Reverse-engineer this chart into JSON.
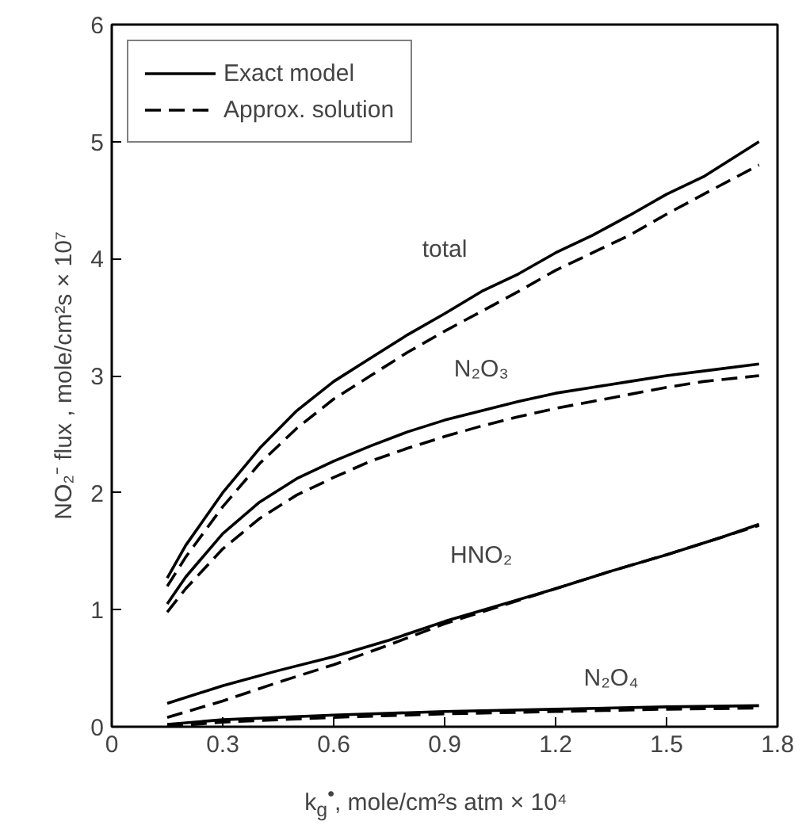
{
  "chart_data": {
    "type": "line",
    "xlabel": "k$_{g}$$^{•}$, mole/cm²s atm × 10⁴",
    "ylabel": "NO₂⁻ flux , mole/cm²s × 10⁷",
    "xlim": [
      0,
      1.8
    ],
    "ylim": [
      0,
      6
    ],
    "xticks": [
      0,
      {
        "value": 0.3,
        "label": "0.3"
      },
      {
        "value": 0.6,
        "label": "0.6"
      },
      {
        "value": 0.9,
        "label": "0.9"
      },
      {
        "value": 1.2,
        "label": "1.2"
      },
      {
        "value": 1.5,
        "label": "1.5"
      },
      {
        "value": 1.8,
        "label": "1.8"
      }
    ],
    "yticks": [
      0,
      1,
      2,
      3,
      4,
      5,
      6
    ],
    "grid": false,
    "legend": "top left",
    "series": [
      {
        "name": "Exact model",
        "color": "#000000",
        "line_style": "solid",
        "x": [
          0.15,
          0.2,
          0.3,
          0.4,
          0.5,
          0.6,
          0.7,
          0.8,
          0.9,
          1.0,
          1.1,
          1.2,
          1.3,
          1.4,
          1.5,
          1.6,
          1.75
        ],
        "values": [
          1.27,
          1.55,
          2.0,
          2.38,
          2.7,
          2.95,
          3.15,
          3.35,
          3.53,
          3.72,
          3.87,
          4.05,
          4.2,
          4.37,
          4.55,
          4.7,
          5.0
        ]
      },
      {
        "name": "Approx. solution",
        "color": "#000000",
        "line_style": "dashed",
        "x": [
          0.15,
          0.2,
          0.3,
          0.4,
          0.5,
          0.6,
          0.7,
          0.8,
          0.9,
          1.0,
          1.1,
          1.2,
          1.3,
          1.4,
          1.5,
          1.6,
          1.75
        ],
        "values": [
          1.2,
          1.45,
          1.88,
          2.25,
          2.55,
          2.8,
          3.0,
          3.2,
          3.38,
          3.55,
          3.72,
          3.9,
          4.05,
          4.2,
          4.38,
          4.55,
          4.8
        ]
      },
      {
        "color": "#000000",
        "line_style": "solid",
        "x": [
          0.15,
          0.2,
          0.3,
          0.4,
          0.5,
          0.6,
          0.7,
          0.8,
          0.9,
          1.0,
          1.1,
          1.2,
          1.3,
          1.4,
          1.5,
          1.6,
          1.75
        ],
        "values": [
          1.05,
          1.28,
          1.65,
          1.92,
          2.12,
          2.27,
          2.4,
          2.52,
          2.62,
          2.7,
          2.78,
          2.85,
          2.9,
          2.95,
          3.0,
          3.04,
          3.1
        ]
      },
      {
        "color": "#000000",
        "line_style": "dashed",
        "x": [
          0.15,
          0.2,
          0.3,
          0.4,
          0.5,
          0.6,
          0.7,
          0.8,
          0.9,
          1.0,
          1.1,
          1.2,
          1.3,
          1.4,
          1.5,
          1.6,
          1.75
        ],
        "values": [
          0.98,
          1.18,
          1.52,
          1.78,
          1.98,
          2.13,
          2.27,
          2.38,
          2.48,
          2.57,
          2.65,
          2.72,
          2.78,
          2.84,
          2.9,
          2.95,
          3.0
        ]
      },
      {
        "color": "#000000",
        "line_style": "solid",
        "x": [
          0.15,
          0.3,
          0.45,
          0.6,
          0.75,
          0.9,
          1.05,
          1.2,
          1.35,
          1.5,
          1.65,
          1.75
        ],
        "values": [
          0.2,
          0.35,
          0.48,
          0.6,
          0.74,
          0.9,
          1.04,
          1.18,
          1.33,
          1.47,
          1.62,
          1.73
        ]
      },
      {
        "color": "#000000",
        "line_style": "dashed",
        "x": [
          0.15,
          0.3,
          0.45,
          0.6,
          0.75,
          0.9,
          1.05,
          1.2,
          1.35,
          1.5,
          1.65,
          1.75
        ],
        "values": [
          0.08,
          0.22,
          0.38,
          0.53,
          0.7,
          0.88,
          1.03,
          1.18,
          1.33,
          1.47,
          1.62,
          1.72
        ]
      },
      {
        "color": "#000000",
        "line_style": "solid",
        "x": [
          0.15,
          0.3,
          0.6,
          0.9,
          1.2,
          1.5,
          1.75
        ],
        "values": [
          0.02,
          0.06,
          0.1,
          0.13,
          0.15,
          0.17,
          0.18
        ]
      },
      {
        "color": "#000000",
        "line_style": "dashed",
        "x": [
          0.15,
          0.3,
          0.6,
          0.9,
          1.2,
          1.5,
          1.75
        ],
        "values": [
          0.0,
          0.04,
          0.08,
          0.11,
          0.13,
          0.15,
          0.16
        ]
      }
    ],
    "annotations": [
      "total",
      "N₂O₃",
      "HNO₂",
      "N₂O₄"
    ]
  }
}
